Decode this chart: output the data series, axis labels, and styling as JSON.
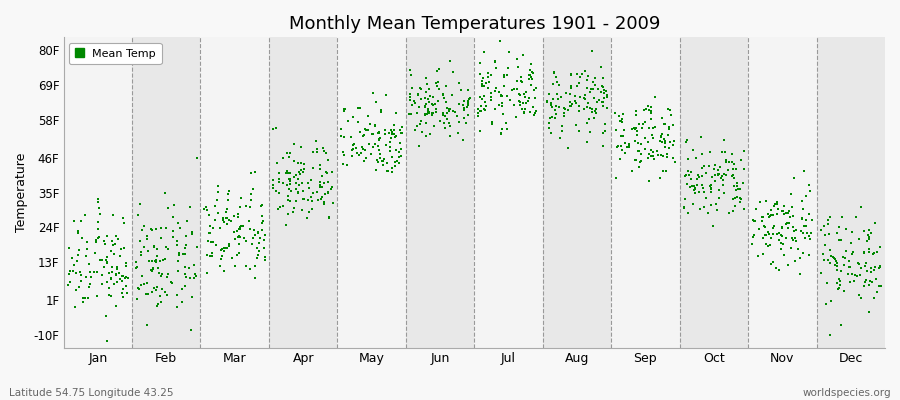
{
  "title": "Monthly Mean Temperatures 1901 - 2009",
  "ylabel": "Temperature",
  "ytick_labels": [
    "-10F",
    "1F",
    "13F",
    "24F",
    "35F",
    "46F",
    "58F",
    "69F",
    "80F"
  ],
  "ytick_values": [
    -10,
    1,
    13,
    24,
    35,
    46,
    58,
    69,
    80
  ],
  "ylim": [
    -14,
    84
  ],
  "xlim": [
    0,
    12
  ],
  "months": [
    "Jan",
    "Feb",
    "Mar",
    "Apr",
    "May",
    "Jun",
    "Jul",
    "Aug",
    "Sep",
    "Oct",
    "Nov",
    "Dec"
  ],
  "month_centers": [
    0.5,
    1.5,
    2.5,
    3.5,
    4.5,
    5.5,
    6.5,
    7.5,
    8.5,
    9.5,
    10.5,
    11.5
  ],
  "dot_color": "#008800",
  "bg_color": "#f8f8f8",
  "stripe_colors": [
    "#f4f4f4",
    "#e8e8e8"
  ],
  "dashed_line_color": "#999999",
  "legend_label": "Mean Temp",
  "subtitle_left": "Latitude 54.75 Longitude 43.25",
  "subtitle_right": "worldspecies.org",
  "num_years": 109,
  "monthly_means_F": [
    12.0,
    12.5,
    22.0,
    38.0,
    52.0,
    63.0,
    66.0,
    63.5,
    52.0,
    38.0,
    24.0,
    14.0
  ],
  "monthly_stds_F": [
    8.0,
    8.5,
    7.5,
    6.5,
    6.0,
    5.5,
    5.0,
    5.5,
    5.5,
    6.5,
    7.0,
    7.5
  ]
}
